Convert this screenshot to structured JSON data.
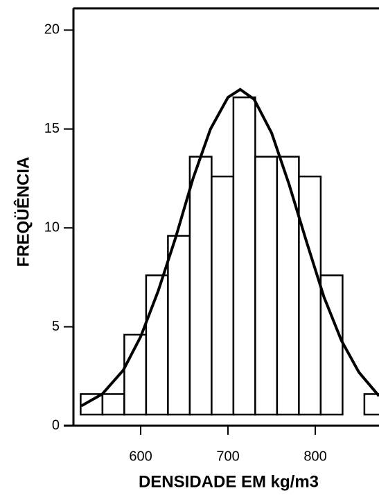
{
  "chart_data": {
    "type": "histogram",
    "xlabel": "DENSIDADE EM kg/m3",
    "ylabel": "FREQÜÊNCIA",
    "bins": [
      531.25,
      556.25,
      581.25,
      606.25,
      631.25,
      656.25,
      681.25,
      706.25,
      731.25,
      756.25,
      781.25,
      806.25,
      831.25,
      856.25,
      881.25
    ],
    "values": [
      1.6,
      1.6,
      4.6,
      7.6,
      9.6,
      13.6,
      12.6,
      16.6,
      13.6,
      13.6,
      12.6,
      7.6,
      null,
      1.6
    ],
    "color": "#ffffff",
    "curve": {
      "x": [
        532,
        556,
        580,
        600,
        620,
        640,
        660,
        680,
        700,
        714,
        730,
        750,
        770,
        790,
        810,
        830,
        850,
        873
      ],
      "values": [
        1.0,
        1.6,
        2.8,
        4.5,
        6.8,
        9.5,
        12.5,
        15.0,
        16.6,
        17.0,
        16.5,
        14.8,
        12.2,
        9.3,
        6.5,
        4.3,
        2.7,
        1.5
      ]
    },
    "xlim": [
      523,
      873
    ],
    "ylim": [
      0,
      21.1
    ],
    "xticks": [
      600,
      700,
      800
    ],
    "yticks": [
      0,
      5,
      10,
      15,
      20
    ]
  }
}
